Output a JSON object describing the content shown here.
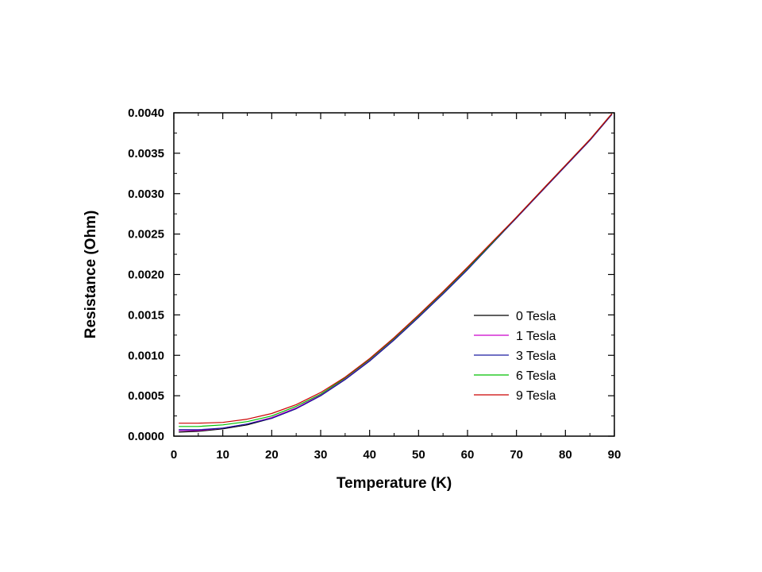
{
  "chart_data": {
    "type": "line",
    "title": "",
    "xlabel": "Temperature (K)",
    "ylabel": "Resistance (Ohm)",
    "xlim": [
      0,
      90
    ],
    "ylim": [
      0,
      0.004
    ],
    "xticks": [
      "0",
      "10",
      "20",
      "30",
      "40",
      "50",
      "60",
      "70",
      "80",
      "90"
    ],
    "yticks": [
      "0.0000",
      "0.0005",
      "0.0010",
      "0.0015",
      "0.0020",
      "0.0025",
      "0.0030",
      "0.0035",
      "0.0040"
    ],
    "grid": false,
    "legend_position": "lower-right",
    "x": [
      1,
      5,
      10,
      15,
      20,
      25,
      30,
      35,
      40,
      45,
      50,
      55,
      60,
      65,
      70,
      75,
      80,
      85,
      89.5
    ],
    "series": [
      {
        "name": "0 Tesla",
        "color": "#000000",
        "values": [
          5e-05,
          6e-05,
          9e-05,
          0.00014,
          0.00022,
          0.00034,
          0.0005,
          0.0007,
          0.00093,
          0.00119,
          0.00147,
          0.00176,
          0.00206,
          0.00238,
          0.0027,
          0.00302,
          0.00334,
          0.00366,
          0.00398
        ]
      },
      {
        "name": "1 Tesla",
        "color": "#cc00cc",
        "values": [
          7e-05,
          7e-05,
          0.0001,
          0.00015,
          0.00023,
          0.00035,
          0.00051,
          0.00071,
          0.00094,
          0.0012,
          0.00148,
          0.00177,
          0.00207,
          0.00238,
          0.0027,
          0.00302,
          0.00334,
          0.00366,
          0.00398
        ]
      },
      {
        "name": "3 Tesla",
        "color": "#1a1aa0",
        "values": [
          8e-05,
          8e-05,
          0.0001,
          0.00015,
          0.00022,
          0.00034,
          0.0005,
          0.0007,
          0.00093,
          0.00119,
          0.00147,
          0.00176,
          0.00206,
          0.00238,
          0.0027,
          0.00302,
          0.00334,
          0.00366,
          0.00398
        ]
      },
      {
        "name": "6 Tesla",
        "color": "#00c000",
        "values": [
          0.00012,
          0.00012,
          0.00014,
          0.00018,
          0.00025,
          0.00037,
          0.00052,
          0.00072,
          0.00095,
          0.00121,
          0.00149,
          0.00178,
          0.00208,
          0.00239,
          0.00271,
          0.00303,
          0.00335,
          0.00367,
          0.00399
        ]
      },
      {
        "name": "9 Tesla",
        "color": "#cc0000",
        "values": [
          0.00016,
          0.00016,
          0.00017,
          0.00021,
          0.00028,
          0.00039,
          0.00054,
          0.00073,
          0.00096,
          0.00122,
          0.0015,
          0.00179,
          0.00209,
          0.0024,
          0.00271,
          0.00303,
          0.00335,
          0.00367,
          0.00399
        ]
      }
    ]
  }
}
